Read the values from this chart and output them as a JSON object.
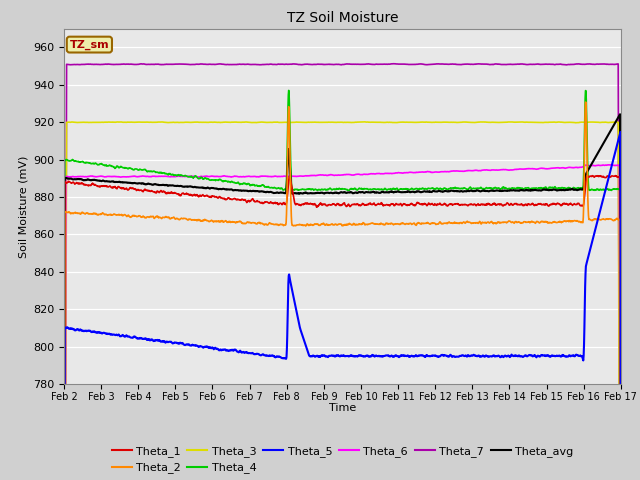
{
  "title": "TZ Soil Moisture",
  "xlabel": "Time",
  "ylabel": "Soil Moisture (mV)",
  "ylim": [
    780,
    970
  ],
  "yticks": [
    780,
    800,
    820,
    840,
    860,
    880,
    900,
    920,
    940,
    960
  ],
  "date_labels": [
    "Feb 2",
    "Feb 3",
    "Feb 4",
    "Feb 5",
    "Feb 6",
    "Feb 7",
    "Feb 8",
    "Feb 9",
    "Feb 10",
    "Feb 11",
    "Feb 12",
    "Feb 13",
    "Feb 14",
    "Feb 15",
    "Feb 16",
    "Feb 17"
  ],
  "colors": {
    "Theta_1": "#dd0000",
    "Theta_2": "#ff8800",
    "Theta_3": "#dddd00",
    "Theta_4": "#00cc00",
    "Theta_5": "#0000ff",
    "Theta_6": "#ff00ff",
    "Theta_7": "#aa00aa",
    "Theta_avg": "#000000"
  },
  "legend_box_color": "#eeeeaa",
  "legend_box_text": "TZ_sm",
  "plot_bg_color": "#e8e8e8"
}
